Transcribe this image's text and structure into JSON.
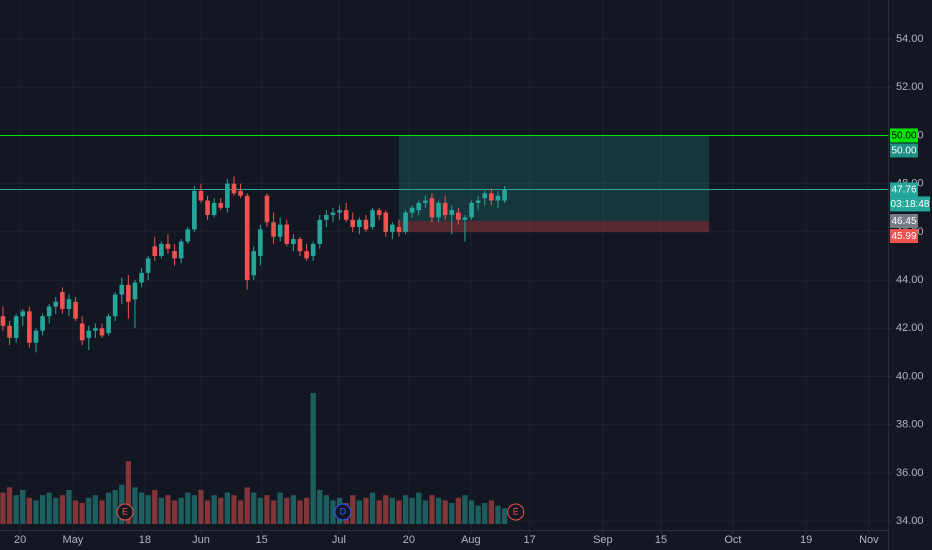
{
  "chart_data": {
    "type": "candlestick",
    "up_color": "#26a69a",
    "down_color": "#ef5350",
    "ohlc": [
      [
        42.5,
        42.9,
        41.9,
        42.1
      ],
      [
        42.1,
        42.3,
        41.3,
        41.6
      ],
      [
        41.6,
        42.6,
        41.4,
        42.5
      ],
      [
        42.5,
        42.8,
        42.1,
        42.7
      ],
      [
        42.7,
        42.9,
        41.2,
        41.4
      ],
      [
        41.4,
        42.0,
        41.0,
        41.9
      ],
      [
        41.9,
        42.6,
        41.7,
        42.5
      ],
      [
        42.5,
        43.0,
        42.2,
        42.9
      ],
      [
        42.9,
        43.3,
        42.6,
        43.1
      ],
      [
        43.5,
        43.7,
        42.6,
        42.8
      ],
      [
        42.8,
        43.4,
        42.5,
        43.2
      ],
      [
        43.1,
        43.3,
        42.3,
        42.4
      ],
      [
        42.2,
        42.5,
        41.3,
        41.5
      ],
      [
        41.6,
        42.1,
        41.1,
        41.9
      ],
      [
        41.9,
        42.2,
        41.6,
        42.0
      ],
      [
        42.0,
        42.2,
        41.6,
        41.7
      ],
      [
        41.8,
        42.6,
        41.7,
        42.5
      ],
      [
        42.5,
        43.5,
        42.3,
        43.4
      ],
      [
        43.4,
        44.1,
        43.0,
        43.8
      ],
      [
        43.8,
        44.2,
        42.4,
        43.1
      ],
      [
        43.2,
        44.0,
        42.0,
        43.9
      ],
      [
        43.9,
        44.5,
        43.7,
        44.3
      ],
      [
        44.3,
        45.0,
        44.0,
        44.9
      ],
      [
        45.4,
        45.8,
        44.8,
        45.0
      ],
      [
        45.0,
        45.6,
        44.9,
        45.5
      ],
      [
        45.5,
        45.9,
        45.1,
        45.3
      ],
      [
        45.2,
        45.5,
        44.6,
        44.9
      ],
      [
        44.9,
        45.7,
        44.7,
        45.6
      ],
      [
        45.6,
        46.2,
        45.5,
        46.1
      ],
      [
        46.1,
        47.9,
        46.0,
        47.7
      ],
      [
        47.7,
        48.0,
        47.2,
        47.3
      ],
      [
        47.3,
        47.5,
        46.5,
        46.7
      ],
      [
        46.7,
        47.4,
        46.6,
        47.2
      ],
      [
        47.2,
        47.4,
        46.9,
        47.0
      ],
      [
        47.0,
        48.2,
        46.8,
        48.0
      ],
      [
        48.0,
        48.3,
        47.5,
        47.6
      ],
      [
        47.7,
        48.0,
        47.4,
        47.5
      ],
      [
        47.5,
        47.6,
        43.6,
        44.0
      ],
      [
        44.2,
        45.4,
        44.0,
        45.2
      ],
      [
        45.0,
        46.3,
        44.6,
        46.1
      ],
      [
        47.5,
        47.6,
        46.2,
        46.4
      ],
      [
        46.4,
        46.8,
        45.5,
        45.8
      ],
      [
        45.8,
        46.6,
        45.6,
        46.3
      ],
      [
        46.3,
        46.5,
        45.4,
        45.5
      ],
      [
        45.5,
        45.9,
        45.2,
        45.7
      ],
      [
        45.7,
        45.8,
        45.0,
        45.2
      ],
      [
        45.2,
        45.5,
        44.8,
        44.9
      ],
      [
        45.0,
        45.6,
        44.8,
        45.5
      ],
      [
        45.5,
        46.7,
        45.3,
        46.5
      ],
      [
        46.5,
        46.9,
        46.2,
        46.7
      ],
      [
        46.7,
        47.0,
        46.4,
        46.8
      ],
      [
        46.8,
        47.1,
        46.5,
        46.9
      ],
      [
        46.9,
        47.2,
        46.4,
        46.5
      ],
      [
        46.5,
        46.8,
        46.0,
        46.2
      ],
      [
        46.2,
        46.6,
        45.9,
        46.5
      ],
      [
        46.5,
        46.7,
        46.0,
        46.1
      ],
      [
        46.2,
        47.0,
        46.1,
        46.9
      ],
      [
        46.9,
        47.0,
        46.5,
        46.7
      ],
      [
        46.8,
        46.9,
        45.8,
        46.0
      ],
      [
        46.0,
        46.4,
        45.7,
        46.3
      ],
      [
        46.2,
        46.5,
        45.8,
        46.0
      ],
      [
        46.0,
        46.9,
        45.9,
        46.8
      ],
      [
        46.8,
        47.1,
        46.6,
        47.0
      ],
      [
        46.9,
        47.3,
        46.7,
        47.2
      ],
      [
        47.2,
        47.5,
        47.0,
        47.3
      ],
      [
        47.4,
        47.6,
        46.4,
        46.6
      ],
      [
        46.6,
        47.3,
        46.4,
        47.2
      ],
      [
        47.2,
        47.5,
        46.5,
        46.7
      ],
      [
        46.7,
        47.1,
        45.9,
        46.9
      ],
      [
        46.8,
        47.0,
        46.3,
        46.5
      ],
      [
        46.5,
        46.7,
        45.6,
        46.6
      ],
      [
        46.6,
        47.3,
        46.5,
        47.2
      ],
      [
        47.2,
        47.5,
        46.9,
        47.3
      ],
      [
        47.4,
        47.7,
        47.1,
        47.6
      ],
      [
        47.6,
        47.8,
        47.1,
        47.3
      ],
      [
        47.3,
        47.7,
        47.0,
        47.5
      ],
      [
        47.3,
        47.9,
        47.2,
        47.76
      ]
    ],
    "volume": [
      24,
      28,
      22,
      26,
      20,
      18,
      22,
      24,
      20,
      22,
      26,
      18,
      16,
      20,
      22,
      18,
      24,
      26,
      30,
      48,
      28,
      24,
      22,
      26,
      20,
      22,
      18,
      20,
      24,
      22,
      26,
      18,
      22,
      20,
      24,
      22,
      18,
      28,
      24,
      20,
      22,
      18,
      24,
      20,
      22,
      18,
      20,
      100,
      26,
      22,
      18,
      20,
      16,
      22,
      18,
      20,
      24,
      18,
      22,
      20,
      18,
      22,
      20,
      24,
      18,
      22,
      20,
      18,
      16,
      20,
      22,
      18,
      14,
      16,
      18,
      14,
      12
    ],
    "vlim": [
      0,
      100
    ],
    "ylim": [
      33.63,
      55.62
    ],
    "yticks": [
      {
        "value": 34,
        "label": "34.00"
      },
      {
        "value": 36,
        "label": "36.00"
      },
      {
        "value": 38,
        "label": "38.00"
      },
      {
        "value": 40,
        "label": "40.00"
      },
      {
        "value": 42,
        "label": "42.00"
      },
      {
        "value": 44,
        "label": "44.00"
      },
      {
        "value": 46,
        "label": "46.00"
      },
      {
        "value": 48,
        "label": "48.00"
      },
      {
        "value": 50,
        "label": "50.00"
      },
      {
        "value": 52,
        "label": "52.00"
      },
      {
        "value": 54,
        "label": "54.00"
      }
    ],
    "xlim": [
      -0.45,
      134.1
    ],
    "xticks": [
      {
        "value": 2.6,
        "label": "20"
      },
      {
        "value": 10.6,
        "label": "May"
      },
      {
        "value": 21.5,
        "label": "18"
      },
      {
        "value": 30,
        "label": "Jun"
      },
      {
        "value": 39.2,
        "label": "15"
      },
      {
        "value": 50.9,
        "label": "Jul"
      },
      {
        "value": 61.5,
        "label": "20"
      },
      {
        "value": 70.9,
        "label": "Aug"
      },
      {
        "value": 79.8,
        "label": "17"
      },
      {
        "value": 90.9,
        "label": "Sep"
      },
      {
        "value": 99.7,
        "label": "15"
      },
      {
        "value": 110.6,
        "label": "Oct"
      },
      {
        "value": 121.7,
        "label": "19"
      },
      {
        "value": 131.2,
        "label": "Nov"
      }
    ],
    "grid": true,
    "lines": [
      {
        "value": 50,
        "color": "#00e600"
      },
      {
        "value": 47.76,
        "color": "#26a69a"
      }
    ],
    "position": {
      "target": 50,
      "entry": 46.45,
      "stop": 45.99,
      "x": [
        60,
        107
      ]
    },
    "price_labels": [
      {
        "value": 50,
        "label": "50.00",
        "color": "#00e600",
        "text_color": "#000000"
      },
      {
        "value": 50,
        "label": "50.00",
        "color": "#1e8f84",
        "text_color": "#ffffff"
      },
      {
        "value": 47.76,
        "label": "47.76",
        "color": "#26a69a",
        "text_color": "#ffffff"
      },
      {
        "value": 46.45,
        "label": "46.45",
        "color": "#787b86",
        "text_color": "#ffffff"
      },
      {
        "value": 45.99,
        "label": "45.99",
        "color": "#ef5350",
        "text_color": "#ffffff"
      }
    ],
    "countdown": "03:18:48",
    "events": [
      {
        "label": "E",
        "x": 18.5,
        "color": "#ef5350"
      },
      {
        "label": "D",
        "x": 51.5,
        "color": "#2962ff"
      },
      {
        "label": "E",
        "x": 77.7,
        "color": "#ef5350"
      }
    ]
  }
}
